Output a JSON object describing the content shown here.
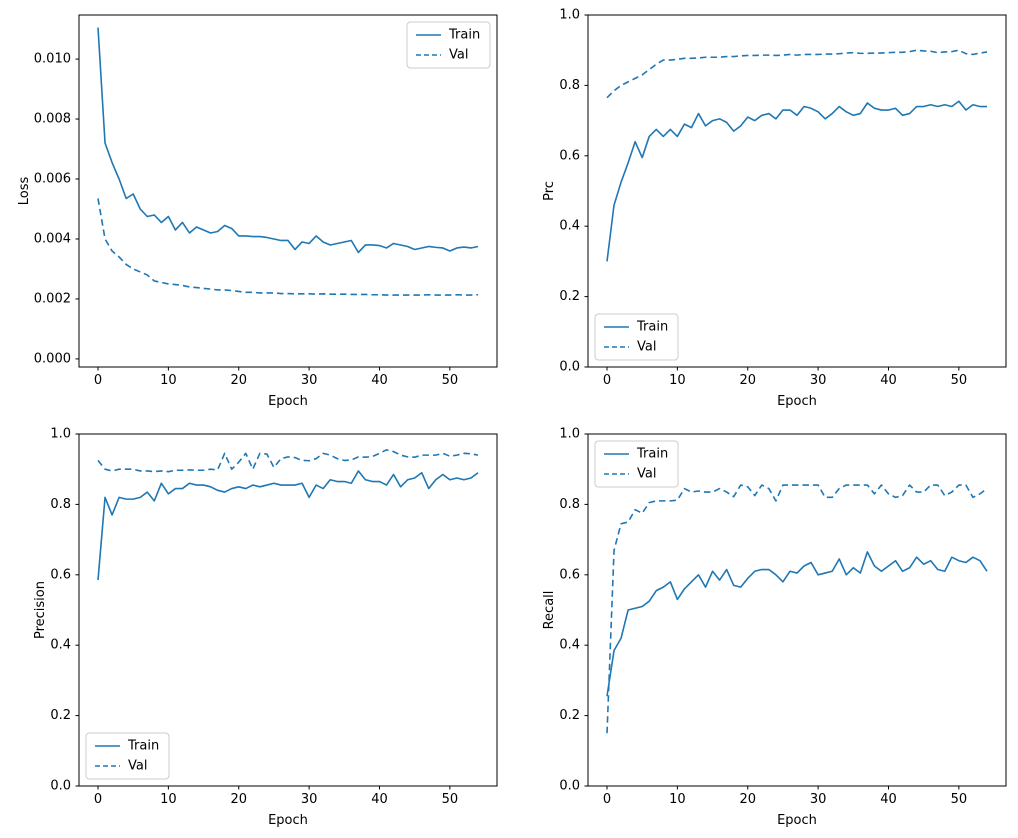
{
  "figure": {
    "background_color": "#ffffff",
    "line_color": "#1f77b4",
    "text_color": "#000000",
    "spine_color": "#000000",
    "legend_border_color": "#cccccc",
    "legend_background": "#ffffff"
  },
  "epochs": [
    0,
    1,
    2,
    3,
    4,
    5,
    6,
    7,
    8,
    9,
    10,
    11,
    12,
    13,
    14,
    15,
    16,
    17,
    18,
    19,
    20,
    21,
    22,
    23,
    24,
    25,
    26,
    27,
    28,
    29,
    30,
    31,
    32,
    33,
    34,
    35,
    36,
    37,
    38,
    39,
    40,
    41,
    42,
    43,
    44,
    45,
    46,
    47,
    48,
    49,
    50,
    51,
    52,
    53,
    54
  ],
  "chart_data": [
    {
      "id": "loss",
      "type": "line",
      "title": "",
      "xlabel": "Epoch",
      "ylabel": "Loss",
      "xlim": [
        -2.7,
        56.7
      ],
      "ylim": [
        -0.00027,
        0.01147
      ],
      "xticks": [
        0,
        10,
        20,
        30,
        40,
        50
      ],
      "xtick_labels": [
        "0",
        "10",
        "20",
        "30",
        "40",
        "50"
      ],
      "yticks": [
        0.0,
        0.002,
        0.004,
        0.006,
        0.008,
        0.01
      ],
      "ytick_labels": [
        "0.000",
        "0.002",
        "0.004",
        "0.006",
        "0.008",
        "0.010"
      ],
      "grid": false,
      "legend": {
        "loc": "upper-right",
        "entries": [
          {
            "label": "Train",
            "line": "solid"
          },
          {
            "label": "Val",
            "line": "dashed"
          }
        ]
      },
      "series": [
        {
          "name": "Train",
          "line": "solid",
          "values": [
            0.01105,
            0.0072,
            0.00655,
            0.006,
            0.00535,
            0.0055,
            0.005,
            0.00475,
            0.0048,
            0.00455,
            0.00475,
            0.0043,
            0.00455,
            0.0042,
            0.0044,
            0.0043,
            0.0042,
            0.00425,
            0.00445,
            0.00435,
            0.0041,
            0.0041,
            0.00408,
            0.00408,
            0.00405,
            0.004,
            0.00395,
            0.00395,
            0.00365,
            0.0039,
            0.00385,
            0.0041,
            0.0039,
            0.0038,
            0.00385,
            0.0039,
            0.00395,
            0.00355,
            0.0038,
            0.0038,
            0.00378,
            0.0037,
            0.00385,
            0.0038,
            0.00375,
            0.00365,
            0.0037,
            0.00375,
            0.00372,
            0.0037,
            0.0036,
            0.0037,
            0.00373,
            0.0037,
            0.00375
          ]
        },
        {
          "name": "Val",
          "line": "dashed",
          "values": [
            0.00535,
            0.004,
            0.0036,
            0.0034,
            0.00315,
            0.003,
            0.0029,
            0.0028,
            0.0026,
            0.00255,
            0.0025,
            0.00248,
            0.00245,
            0.0024,
            0.00238,
            0.00235,
            0.00233,
            0.0023,
            0.0023,
            0.00228,
            0.00225,
            0.00222,
            0.00222,
            0.0022,
            0.0022,
            0.0022,
            0.00218,
            0.00218,
            0.00217,
            0.00217,
            0.00217,
            0.00216,
            0.00217,
            0.00216,
            0.00216,
            0.00216,
            0.00215,
            0.00215,
            0.00215,
            0.00214,
            0.00214,
            0.00213,
            0.00213,
            0.00213,
            0.00213,
            0.00213,
            0.00213,
            0.00214,
            0.00213,
            0.00213,
            0.00213,
            0.00214,
            0.00213,
            0.00213,
            0.00214
          ]
        }
      ]
    },
    {
      "id": "prc",
      "type": "line",
      "title": "",
      "xlabel": "Epoch",
      "ylabel": "Prc",
      "xlim": [
        -2.7,
        56.7
      ],
      "ylim": [
        0.0,
        1.0
      ],
      "xticks": [
        0,
        10,
        20,
        30,
        40,
        50
      ],
      "xtick_labels": [
        "0",
        "10",
        "20",
        "30",
        "40",
        "50"
      ],
      "yticks": [
        0.0,
        0.2,
        0.4,
        0.6,
        0.8,
        1.0
      ],
      "ytick_labels": [
        "0.0",
        "0.2",
        "0.4",
        "0.6",
        "0.8",
        "1.0"
      ],
      "grid": false,
      "legend": {
        "loc": "lower-left",
        "entries": [
          {
            "label": "Train",
            "line": "solid"
          },
          {
            "label": "Val",
            "line": "dashed"
          }
        ]
      },
      "series": [
        {
          "name": "Train",
          "line": "solid",
          "values": [
            0.3,
            0.46,
            0.525,
            0.58,
            0.64,
            0.595,
            0.655,
            0.675,
            0.655,
            0.675,
            0.655,
            0.69,
            0.68,
            0.72,
            0.685,
            0.7,
            0.705,
            0.695,
            0.67,
            0.685,
            0.71,
            0.7,
            0.715,
            0.72,
            0.705,
            0.73,
            0.73,
            0.715,
            0.74,
            0.735,
            0.725,
            0.705,
            0.72,
            0.74,
            0.725,
            0.715,
            0.72,
            0.75,
            0.735,
            0.73,
            0.73,
            0.735,
            0.715,
            0.72,
            0.74,
            0.74,
            0.745,
            0.74,
            0.745,
            0.74,
            0.755,
            0.73,
            0.745,
            0.74,
            0.74
          ]
        },
        {
          "name": "Val",
          "line": "dashed",
          "values": [
            0.765,
            0.785,
            0.8,
            0.81,
            0.82,
            0.83,
            0.845,
            0.86,
            0.872,
            0.872,
            0.874,
            0.877,
            0.877,
            0.878,
            0.88,
            0.88,
            0.88,
            0.882,
            0.882,
            0.884,
            0.885,
            0.885,
            0.886,
            0.886,
            0.885,
            0.886,
            0.888,
            0.886,
            0.888,
            0.888,
            0.888,
            0.889,
            0.889,
            0.89,
            0.892,
            0.893,
            0.891,
            0.891,
            0.892,
            0.892,
            0.893,
            0.894,
            0.894,
            0.896,
            0.9,
            0.898,
            0.897,
            0.893,
            0.895,
            0.896,
            0.9,
            0.89,
            0.888,
            0.892,
            0.895
          ]
        }
      ]
    },
    {
      "id": "precision",
      "type": "line",
      "title": "",
      "xlabel": "Epoch",
      "ylabel": "Precision",
      "xlim": [
        -2.7,
        56.7
      ],
      "ylim": [
        0.0,
        1.0
      ],
      "xticks": [
        0,
        10,
        20,
        30,
        40,
        50
      ],
      "xtick_labels": [
        "0",
        "10",
        "20",
        "30",
        "40",
        "50"
      ],
      "yticks": [
        0.0,
        0.2,
        0.4,
        0.6,
        0.8,
        1.0
      ],
      "ytick_labels": [
        "0.0",
        "0.2",
        "0.4",
        "0.6",
        "0.8",
        "1.0"
      ],
      "grid": false,
      "legend": {
        "loc": "lower-left",
        "entries": [
          {
            "label": "Train",
            "line": "solid"
          },
          {
            "label": "Val",
            "line": "dashed"
          }
        ]
      },
      "series": [
        {
          "name": "Train",
          "line": "solid",
          "values": [
            0.585,
            0.82,
            0.77,
            0.82,
            0.815,
            0.815,
            0.82,
            0.835,
            0.81,
            0.86,
            0.83,
            0.845,
            0.845,
            0.86,
            0.855,
            0.855,
            0.85,
            0.84,
            0.835,
            0.845,
            0.85,
            0.845,
            0.855,
            0.85,
            0.855,
            0.86,
            0.855,
            0.855,
            0.855,
            0.86,
            0.82,
            0.855,
            0.845,
            0.87,
            0.865,
            0.865,
            0.86,
            0.895,
            0.87,
            0.865,
            0.865,
            0.855,
            0.885,
            0.85,
            0.87,
            0.875,
            0.89,
            0.845,
            0.87,
            0.885,
            0.87,
            0.875,
            0.87,
            0.875,
            0.89
          ]
        },
        {
          "name": "Val",
          "line": "dashed",
          "values": [
            0.925,
            0.9,
            0.895,
            0.9,
            0.9,
            0.9,
            0.895,
            0.895,
            0.893,
            0.895,
            0.893,
            0.897,
            0.897,
            0.898,
            0.897,
            0.897,
            0.9,
            0.898,
            0.945,
            0.9,
            0.92,
            0.945,
            0.9,
            0.945,
            0.943,
            0.905,
            0.93,
            0.935,
            0.933,
            0.925,
            0.924,
            0.93,
            0.945,
            0.94,
            0.93,
            0.925,
            0.926,
            0.935,
            0.934,
            0.936,
            0.945,
            0.955,
            0.95,
            0.94,
            0.935,
            0.934,
            0.94,
            0.94,
            0.94,
            0.945,
            0.937,
            0.94,
            0.945,
            0.944,
            0.94
          ]
        }
      ]
    },
    {
      "id": "recall",
      "type": "line",
      "title": "",
      "xlabel": "Epoch",
      "ylabel": "Recall",
      "xlim": [
        -2.7,
        56.7
      ],
      "ylim": [
        0.0,
        1.0
      ],
      "xticks": [
        0,
        10,
        20,
        30,
        40,
        50
      ],
      "xtick_labels": [
        "0",
        "10",
        "20",
        "30",
        "40",
        "50"
      ],
      "yticks": [
        0.0,
        0.2,
        0.4,
        0.6,
        0.8,
        1.0
      ],
      "ytick_labels": [
        "0.0",
        "0.2",
        "0.4",
        "0.6",
        "0.8",
        "1.0"
      ],
      "grid": false,
      "legend": {
        "loc": "upper-left",
        "entries": [
          {
            "label": "Train",
            "line": "solid"
          },
          {
            "label": "Val",
            "line": "dashed"
          }
        ]
      },
      "series": [
        {
          "name": "Train",
          "line": "solid",
          "values": [
            0.255,
            0.385,
            0.42,
            0.5,
            0.505,
            0.51,
            0.525,
            0.555,
            0.565,
            0.58,
            0.53,
            0.56,
            0.58,
            0.6,
            0.565,
            0.61,
            0.585,
            0.615,
            0.57,
            0.565,
            0.59,
            0.61,
            0.615,
            0.615,
            0.6,
            0.58,
            0.61,
            0.605,
            0.625,
            0.635,
            0.6,
            0.605,
            0.61,
            0.645,
            0.6,
            0.62,
            0.605,
            0.665,
            0.625,
            0.61,
            0.625,
            0.64,
            0.61,
            0.62,
            0.65,
            0.63,
            0.64,
            0.615,
            0.61,
            0.65,
            0.64,
            0.635,
            0.65,
            0.64,
            0.61
          ]
        },
        {
          "name": "Val",
          "line": "dashed",
          "values": [
            0.15,
            0.67,
            0.745,
            0.75,
            0.785,
            0.775,
            0.805,
            0.81,
            0.81,
            0.81,
            0.812,
            0.845,
            0.835,
            0.838,
            0.835,
            0.835,
            0.845,
            0.835,
            0.822,
            0.855,
            0.85,
            0.825,
            0.855,
            0.845,
            0.81,
            0.855,
            0.855,
            0.855,
            0.855,
            0.855,
            0.855,
            0.82,
            0.82,
            0.845,
            0.855,
            0.855,
            0.855,
            0.855,
            0.83,
            0.855,
            0.83,
            0.82,
            0.825,
            0.855,
            0.835,
            0.835,
            0.855,
            0.855,
            0.825,
            0.835,
            0.855,
            0.855,
            0.82,
            0.83,
            0.845
          ]
        }
      ]
    }
  ]
}
